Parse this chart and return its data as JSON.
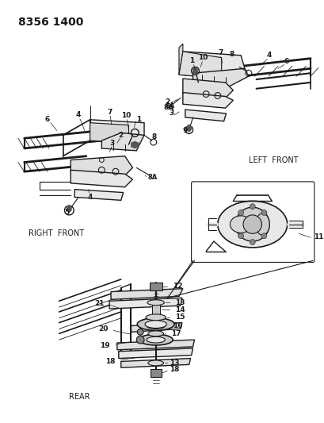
{
  "title_code": "8356 1400",
  "bg_color": "#ffffff",
  "line_color": "#1a1a1a",
  "text_color": "#1a1a1a",
  "fig_width": 4.1,
  "fig_height": 5.33,
  "dpi": 100,
  "labels": {
    "right_front": "RIGHT  FRONT",
    "left_front": "LEFT  FRONT",
    "rear": "REAR"
  }
}
